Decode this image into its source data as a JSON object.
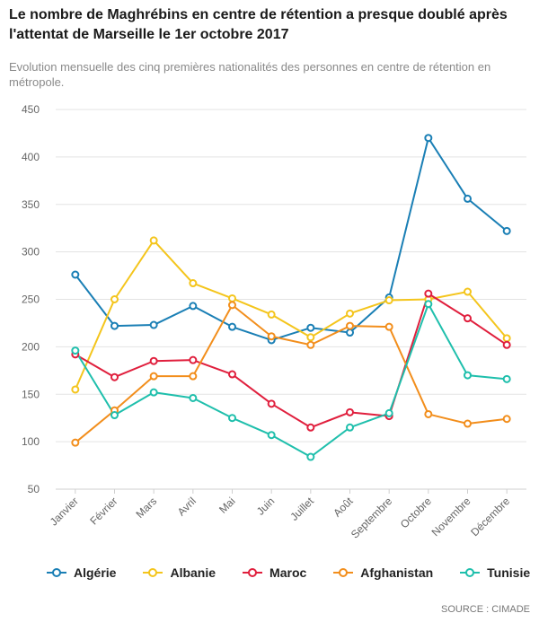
{
  "title": "Le nombre de Maghrébins en centre de rétention a presque doublé après l'attentat de Marseille le 1er octobre 2017",
  "subtitle": "Evolution mensuelle des cinq premières nationalités des personnes en centre de rétention en métropole.",
  "source": "SOURCE : CIMADE",
  "chart_data": {
    "type": "line",
    "title": "Le nombre de Maghrébins en centre de rétention a presque doublé après l'attentat de Marseille le 1er octobre 2017",
    "xlabel": "",
    "ylabel": "",
    "ylim": [
      50,
      450
    ],
    "yticks": [
      50,
      100,
      150,
      200,
      250,
      300,
      350,
      400,
      450
    ],
    "grid": true,
    "legend": "bottom",
    "categories": [
      "Janvier",
      "Février",
      "Mars",
      "Avril",
      "Mai",
      "Juin",
      "Juillet",
      "Août",
      "Septembre",
      "Octobre",
      "Novembre",
      "Décembre"
    ],
    "series": [
      {
        "name": "Algérie",
        "color": "#1a7fb5",
        "values": [
          276,
          222,
          223,
          243,
          221,
          207,
          220,
          215,
          252,
          420,
          356,
          322
        ]
      },
      {
        "name": "Albanie",
        "color": "#f4c51c",
        "values": [
          155,
          250,
          312,
          267,
          251,
          234,
          210,
          235,
          249,
          250,
          258,
          209
        ]
      },
      {
        "name": "Maroc",
        "color": "#e01f3d",
        "values": [
          192,
          168,
          185,
          186,
          171,
          140,
          115,
          131,
          127,
          256,
          230,
          202
        ]
      },
      {
        "name": "Afghanistan",
        "color": "#f28e1c",
        "values": [
          99,
          133,
          169,
          169,
          244,
          211,
          202,
          222,
          221,
          129,
          119,
          124
        ]
      },
      {
        "name": "Tunisie",
        "color": "#1fbfac",
        "values": [
          196,
          128,
          152,
          146,
          125,
          107,
          84,
          115,
          130,
          245,
          170,
          166
        ]
      }
    ]
  }
}
